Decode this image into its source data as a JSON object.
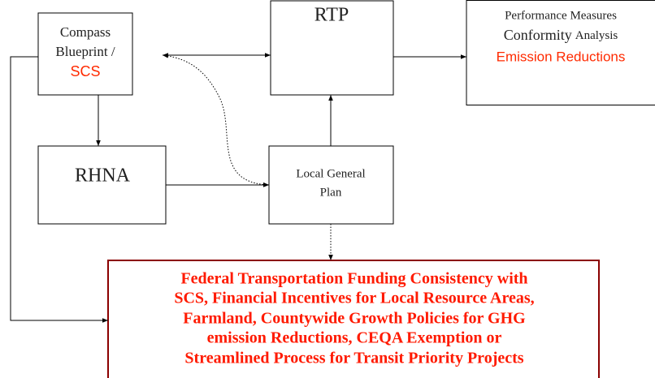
{
  "nodes": [
    {
      "id": "compass",
      "lines": [
        "Compass",
        "Blueprint /",
        "SCS"
      ]
    },
    {
      "id": "rtp",
      "lines": [
        "RTP"
      ]
    },
    {
      "id": "performance",
      "lines": [
        "Performance Measures",
        "Conformity",
        "Analysis",
        "Emission Reductions"
      ]
    },
    {
      "id": "rhna",
      "lines": [
        "RHNA"
      ]
    },
    {
      "id": "local",
      "lines": [
        "Local General",
        "Plan"
      ]
    },
    {
      "id": "funding",
      "lines": [
        "Federal Transportation Funding Consistency with",
        "SCS, Financial Incentives for Local Resource Areas,",
        "Farmland, Countywide Growth Policies for GHG",
        "emission Reductions, CEQA Exemption or",
        "Streamlined Process for Transit Priority Projects"
      ]
    }
  ]
}
